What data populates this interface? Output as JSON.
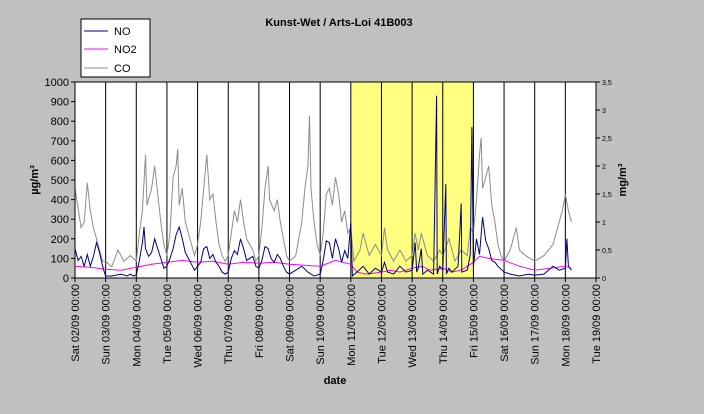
{
  "chart_data": {
    "type": "line",
    "title": "Kunst-Wet / Arts-Loi 41B003",
    "xlabel": "date",
    "ylabel_left": "µg/m³",
    "ylabel_right": "mg/m³",
    "ylim_left": [
      0,
      1000
    ],
    "ylim_right": [
      0,
      3.5
    ],
    "yticks_left": [
      "0",
      "100",
      "200",
      "300",
      "400",
      "500",
      "600",
      "700",
      "800",
      "900",
      "1000"
    ],
    "yticks_right": [
      "0",
      "0,5",
      "1",
      "1,5",
      "2",
      "2,5",
      "3",
      "3,5"
    ],
    "x_tick_labels": [
      "Sat 02/09 00:00",
      "Sun 03/09 00:00",
      "Mon 04/09 00:00",
      "Tue 05/09 00:00",
      "Wed 06/09 00:00",
      "Thu 07/09 00:00",
      "Fri 08/09 00:00",
      "Sat 09/09 00:00",
      "Sun 10/09 00:00",
      "Mon 11/09 00:00",
      "Tue 12/09 00:00",
      "Wed 13/09 00:00",
      "Thu 14/09 00:00",
      "Fri 15/09 00:00",
      "Sat 16/09 00:00",
      "Sun 17/09 00:00",
      "Mon 18/09 00:00",
      "Tue 19/09 00:00"
    ],
    "x_unit": "days since Sat 02/09 00:00",
    "xlim": [
      0,
      17
    ],
    "highlight_range": [
      9,
      13
    ],
    "grid": "vertical at each day",
    "legend_position": "top-left",
    "series": [
      {
        "name": "NO",
        "axis": "left",
        "color": "#000080",
        "points": [
          [
            0,
            150
          ],
          [
            0.1,
            90
          ],
          [
            0.2,
            110
          ],
          [
            0.3,
            60
          ],
          [
            0.4,
            120
          ],
          [
            0.5,
            60
          ],
          [
            0.6,
            110
          ],
          [
            0.7,
            180
          ],
          [
            0.8,
            130
          ],
          [
            0.9,
            60
          ],
          [
            1,
            10
          ],
          [
            1.2,
            10
          ],
          [
            1.5,
            20
          ],
          [
            1.7,
            10
          ],
          [
            1.8,
            20
          ],
          [
            1.9,
            10
          ],
          [
            2,
            15
          ],
          [
            2.1,
            90
          ],
          [
            2.2,
            180
          ],
          [
            2.25,
            260
          ],
          [
            2.3,
            150
          ],
          [
            2.4,
            110
          ],
          [
            2.5,
            130
          ],
          [
            2.6,
            200
          ],
          [
            2.7,
            150
          ],
          [
            2.8,
            100
          ],
          [
            2.9,
            50
          ],
          [
            3,
            60
          ],
          [
            3.1,
            100
          ],
          [
            3.2,
            150
          ],
          [
            3.3,
            220
          ],
          [
            3.4,
            260
          ],
          [
            3.5,
            200
          ],
          [
            3.6,
            130
          ],
          [
            3.7,
            100
          ],
          [
            3.8,
            70
          ],
          [
            3.9,
            40
          ],
          [
            4,
            60
          ],
          [
            4.1,
            80
          ],
          [
            4.2,
            150
          ],
          [
            4.3,
            160
          ],
          [
            4.4,
            100
          ],
          [
            4.5,
            120
          ],
          [
            4.6,
            80
          ],
          [
            4.7,
            60
          ],
          [
            4.8,
            30
          ],
          [
            4.9,
            20
          ],
          [
            5,
            30
          ],
          [
            5.1,
            100
          ],
          [
            5.2,
            140
          ],
          [
            5.3,
            120
          ],
          [
            5.4,
            200
          ],
          [
            5.5,
            150
          ],
          [
            5.6,
            90
          ],
          [
            5.7,
            100
          ],
          [
            5.8,
            110
          ],
          [
            5.9,
            60
          ],
          [
            6,
            50
          ],
          [
            6.1,
            90
          ],
          [
            6.2,
            160
          ],
          [
            6.3,
            150
          ],
          [
            6.4,
            100
          ],
          [
            6.5,
            80
          ],
          [
            6.6,
            120
          ],
          [
            6.7,
            100
          ],
          [
            6.8,
            60
          ],
          [
            6.9,
            30
          ],
          [
            7,
            20
          ],
          [
            7.2,
            40
          ],
          [
            7.4,
            60
          ],
          [
            7.6,
            30
          ],
          [
            7.8,
            10
          ],
          [
            8,
            20
          ],
          [
            8.1,
            90
          ],
          [
            8.2,
            190
          ],
          [
            8.3,
            180
          ],
          [
            8.4,
            100
          ],
          [
            8.5,
            200
          ],
          [
            8.6,
            150
          ],
          [
            8.7,
            80
          ],
          [
            8.8,
            140
          ],
          [
            8.9,
            100
          ],
          [
            9,
            280
          ],
          [
            9.05,
            10
          ],
          [
            9.2,
            30
          ],
          [
            9.4,
            60
          ],
          [
            9.6,
            20
          ],
          [
            9.8,
            50
          ],
          [
            10,
            30
          ],
          [
            10.1,
            80
          ],
          [
            10.2,
            30
          ],
          [
            10.4,
            20
          ],
          [
            10.6,
            60
          ],
          [
            10.8,
            30
          ],
          [
            11,
            40
          ],
          [
            11.1,
            180
          ],
          [
            11.15,
            30
          ],
          [
            11.2,
            50
          ],
          [
            11.3,
            150
          ],
          [
            11.35,
            20
          ],
          [
            11.5,
            40
          ],
          [
            11.7,
            20
          ],
          [
            11.8,
            930
          ],
          [
            11.82,
            20
          ],
          [
            11.9,
            60
          ],
          [
            12,
            40
          ],
          [
            12.1,
            480
          ],
          [
            12.12,
            20
          ],
          [
            12.2,
            50
          ],
          [
            12.3,
            30
          ],
          [
            12.5,
            60
          ],
          [
            12.6,
            380
          ],
          [
            12.62,
            30
          ],
          [
            12.8,
            40
          ],
          [
            12.9,
            120
          ],
          [
            12.95,
            770
          ],
          [
            13,
            60
          ],
          [
            13.1,
            200
          ],
          [
            13.2,
            120
          ],
          [
            13.3,
            310
          ],
          [
            13.4,
            190
          ],
          [
            13.5,
            150
          ],
          [
            13.6,
            90
          ],
          [
            13.7,
            80
          ],
          [
            13.8,
            60
          ],
          [
            14,
            30
          ],
          [
            14.2,
            20
          ],
          [
            14.5,
            10
          ],
          [
            14.8,
            20
          ],
          [
            15,
            15
          ],
          [
            15.3,
            20
          ],
          [
            15.6,
            60
          ],
          [
            15.8,
            40
          ],
          [
            16,
            50
          ],
          [
            16.05,
            200
          ],
          [
            16.1,
            60
          ],
          [
            16.2,
            40
          ]
        ]
      },
      {
        "name": "NO2",
        "axis": "left",
        "color": "#ff00ff",
        "points": [
          [
            0,
            60
          ],
          [
            0.5,
            55
          ],
          [
            1,
            45
          ],
          [
            1.5,
            40
          ],
          [
            2,
            55
          ],
          [
            2.5,
            70
          ],
          [
            3,
            80
          ],
          [
            3.5,
            90
          ],
          [
            4,
            80
          ],
          [
            4.5,
            85
          ],
          [
            5,
            70
          ],
          [
            5.5,
            80
          ],
          [
            6,
            75
          ],
          [
            6.5,
            80
          ],
          [
            7,
            70
          ],
          [
            7.5,
            65
          ],
          [
            8,
            60
          ],
          [
            8.5,
            90
          ],
          [
            9,
            70
          ],
          [
            9.2,
            30
          ],
          [
            9.5,
            20
          ],
          [
            10,
            30
          ],
          [
            10.3,
            40
          ],
          [
            10.6,
            30
          ],
          [
            11,
            50
          ],
          [
            11.3,
            60
          ],
          [
            11.6,
            40
          ],
          [
            12,
            50
          ],
          [
            12.3,
            30
          ],
          [
            12.6,
            40
          ],
          [
            13,
            80
          ],
          [
            13.2,
            110
          ],
          [
            13.5,
            100
          ],
          [
            14,
            90
          ],
          [
            14.5,
            60
          ],
          [
            15,
            40
          ],
          [
            15.5,
            50
          ],
          [
            16,
            60
          ],
          [
            16.2,
            50
          ]
        ]
      },
      {
        "name": "CO",
        "axis": "right",
        "color": "#8c8c8c",
        "points": [
          [
            0,
            1.6
          ],
          [
            0.2,
            0.9
          ],
          [
            0.3,
            1.0
          ],
          [
            0.4,
            1.7
          ],
          [
            0.5,
            1.2
          ],
          [
            0.6,
            0.9
          ],
          [
            0.7,
            0.7
          ],
          [
            0.8,
            0.5
          ],
          [
            0.9,
            0.3
          ],
          [
            1,
            0.3
          ],
          [
            1.2,
            0.2
          ],
          [
            1.4,
            0.5
          ],
          [
            1.6,
            0.3
          ],
          [
            1.8,
            0.4
          ],
          [
            2,
            0.3
          ],
          [
            2.1,
            0.8
          ],
          [
            2.2,
            1.2
          ],
          [
            2.3,
            2.2
          ],
          [
            2.35,
            1.3
          ],
          [
            2.5,
            1.6
          ],
          [
            2.6,
            2.0
          ],
          [
            2.7,
            1.5
          ],
          [
            2.8,
            1.0
          ],
          [
            2.9,
            0.6
          ],
          [
            3,
            0.4
          ],
          [
            3.1,
            0.8
          ],
          [
            3.2,
            1.8
          ],
          [
            3.3,
            2.0
          ],
          [
            3.35,
            2.3
          ],
          [
            3.4,
            1.3
          ],
          [
            3.5,
            1.6
          ],
          [
            3.6,
            1.0
          ],
          [
            3.7,
            0.8
          ],
          [
            3.8,
            0.6
          ],
          [
            3.9,
            0.4
          ],
          [
            4,
            0.6
          ],
          [
            4.1,
            1.0
          ],
          [
            4.2,
            1.6
          ],
          [
            4.3,
            2.2
          ],
          [
            4.4,
            1.4
          ],
          [
            4.5,
            1.5
          ],
          [
            4.6,
            1.0
          ],
          [
            4.7,
            0.6
          ],
          [
            4.8,
            0.4
          ],
          [
            4.9,
            0.3
          ],
          [
            5,
            0.4
          ],
          [
            5.1,
            0.8
          ],
          [
            5.2,
            1.2
          ],
          [
            5.3,
            1.0
          ],
          [
            5.4,
            1.4
          ],
          [
            5.5,
            1.0
          ],
          [
            5.6,
            0.7
          ],
          [
            5.7,
            0.6
          ],
          [
            5.8,
            0.5
          ],
          [
            5.9,
            0.3
          ],
          [
            6,
            0.4
          ],
          [
            6.1,
            0.9
          ],
          [
            6.2,
            1.6
          ],
          [
            6.3,
            2.0
          ],
          [
            6.35,
            1.4
          ],
          [
            6.5,
            1.2
          ],
          [
            6.6,
            1.4
          ],
          [
            6.7,
            1.0
          ],
          [
            6.8,
            0.7
          ],
          [
            6.9,
            0.4
          ],
          [
            7,
            0.3
          ],
          [
            7.2,
            0.4
          ],
          [
            7.4,
            1.0
          ],
          [
            7.5,
            1.6
          ],
          [
            7.6,
            2.0
          ],
          [
            7.65,
            2.9
          ],
          [
            7.7,
            1.6
          ],
          [
            7.8,
            1.0
          ],
          [
            7.9,
            0.6
          ],
          [
            8,
            0.4
          ],
          [
            8.1,
            0.8
          ],
          [
            8.2,
            1.5
          ],
          [
            8.3,
            1.6
          ],
          [
            8.4,
            1.3
          ],
          [
            8.5,
            1.8
          ],
          [
            8.6,
            1.5
          ],
          [
            8.7,
            1.0
          ],
          [
            8.8,
            1.2
          ],
          [
            8.9,
            0.8
          ],
          [
            9,
            0.9
          ],
          [
            9.1,
            0.3
          ],
          [
            9.3,
            0.5
          ],
          [
            9.4,
            0.8
          ],
          [
            9.6,
            0.4
          ],
          [
            9.8,
            0.6
          ],
          [
            10,
            0.4
          ],
          [
            10.1,
            0.9
          ],
          [
            10.2,
            0.5
          ],
          [
            10.4,
            0.3
          ],
          [
            10.6,
            0.5
          ],
          [
            10.8,
            0.3
          ],
          [
            11,
            0.4
          ],
          [
            11.1,
            0.8
          ],
          [
            11.2,
            0.5
          ],
          [
            11.3,
            0.8
          ],
          [
            11.5,
            0.4
          ],
          [
            11.7,
            0.3
          ],
          [
            11.9,
            0.5
          ],
          [
            12,
            0.4
          ],
          [
            12.2,
            0.7
          ],
          [
            12.4,
            0.3
          ],
          [
            12.6,
            0.5
          ],
          [
            12.8,
            0.4
          ],
          [
            12.9,
            0.9
          ],
          [
            13,
            0.8
          ],
          [
            13.1,
            1.4
          ],
          [
            13.2,
            2.2
          ],
          [
            13.25,
            2.5
          ],
          [
            13.3,
            1.6
          ],
          [
            13.4,
            1.8
          ],
          [
            13.5,
            2.0
          ],
          [
            13.6,
            1.3
          ],
          [
            13.7,
            1.0
          ],
          [
            13.8,
            0.6
          ],
          [
            13.9,
            0.4
          ],
          [
            14,
            0.3
          ],
          [
            14.2,
            0.5
          ],
          [
            14.4,
            0.9
          ],
          [
            14.5,
            0.5
          ],
          [
            14.7,
            0.4
          ],
          [
            15,
            0.3
          ],
          [
            15.3,
            0.4
          ],
          [
            15.6,
            0.6
          ],
          [
            15.8,
            1.0
          ],
          [
            15.9,
            1.2
          ],
          [
            16,
            1.5
          ],
          [
            16.1,
            1.2
          ],
          [
            16.2,
            1.0
          ]
        ]
      }
    ]
  }
}
